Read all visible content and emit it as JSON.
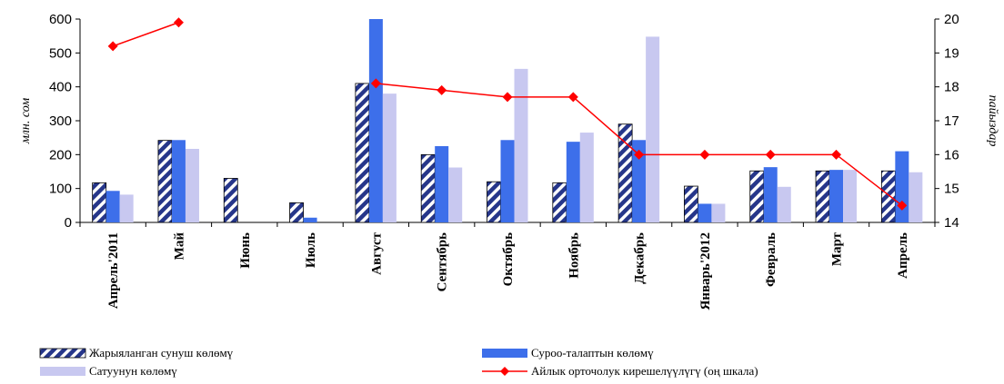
{
  "chart_data": {
    "type": "bar",
    "categories": [
      "Апрель'2011",
      "Май",
      "Июнь",
      "Июль",
      "Август",
      "Сентябрь",
      "Октябрь",
      "Ноябрь",
      "Декабрь",
      "Январь'2012",
      "Февраль",
      "Март",
      "Апрель"
    ],
    "series": [
      {
        "name": "Жарыяланган сунуш көлөмү",
        "type": "bar",
        "axis": "left",
        "pattern": "hatched",
        "color": "#2b3f8c",
        "values": [
          117,
          242,
          130,
          58,
          410,
          200,
          120,
          117,
          290,
          107,
          152,
          152,
          152
        ]
      },
      {
        "name": "Суроо-талаптын көлөмү",
        "type": "bar",
        "axis": "left",
        "color": "#3d6fea",
        "values": [
          93,
          243,
          0,
          14,
          600,
          225,
          243,
          238,
          243,
          55,
          163,
          155,
          210
        ]
      },
      {
        "name": "Сатуунун көлөмү",
        "type": "bar",
        "axis": "left",
        "color": "#c8c8f0",
        "values": [
          82,
          217,
          0,
          0,
          380,
          162,
          453,
          265,
          548,
          55,
          105,
          155,
          148
        ]
      },
      {
        "name": "Айлык орточолук кирешелүүлүгү (оң шкала)",
        "type": "line",
        "axis": "right",
        "color": "#ff0000",
        "values": [
          19.2,
          19.9,
          null,
          null,
          18.1,
          17.9,
          17.7,
          17.7,
          16.0,
          16.0,
          16.0,
          16.0,
          14.5
        ]
      }
    ],
    "ylabel": "млн. сом",
    "y2label": "пайыздар",
    "ylim": [
      0,
      600
    ],
    "yticks": [
      "0",
      "100",
      "200",
      "300",
      "400",
      "500",
      "600"
    ],
    "y2lim": [
      14,
      20
    ],
    "y2ticks": [
      "14",
      "15",
      "16",
      "17",
      "18",
      "19",
      "20"
    ],
    "legend_position": "bottom",
    "grid": false
  }
}
